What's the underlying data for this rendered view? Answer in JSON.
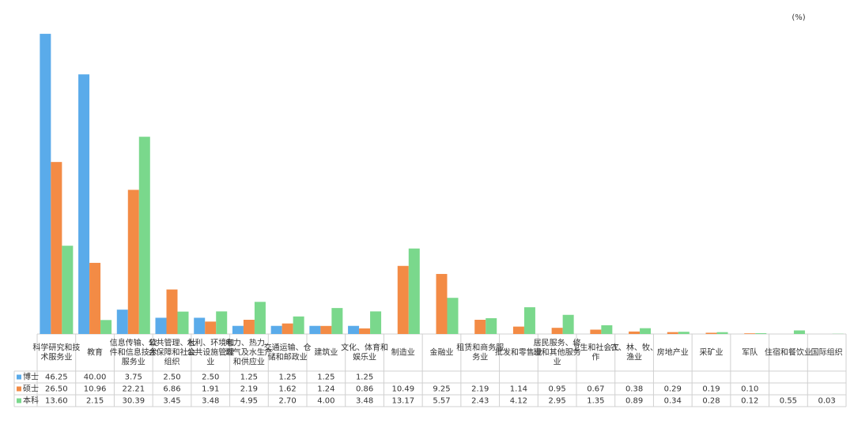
{
  "chart_data": {
    "type": "bar",
    "unit_note": "(%)",
    "categories": [
      "科学研究和技术服务业",
      "教育",
      "信息传输、软件和信息技术服务业",
      "公共管理、社会保障和社会组织",
      "水利、环境和公共设施管理业",
      "电力、热力、燃气及水生产和供应业",
      "交通运输、仓储和邮政业",
      "建筑业",
      "文化、体育和娱乐业",
      "制造业",
      "金融业",
      "租赁和商务服务业",
      "批发和零售业",
      "居民服务、修理和其他服务业",
      "卫生和社会工作",
      "农、林、牧、渔业",
      "房地产业",
      "采矿业",
      "军队",
      "住宿和餐饮业",
      "国际组织"
    ],
    "series": [
      {
        "name": "博士",
        "color": "#5aabea",
        "values": [
          46.25,
          40.0,
          3.75,
          2.5,
          2.5,
          1.25,
          1.25,
          1.25,
          1.25,
          null,
          null,
          null,
          null,
          null,
          null,
          null,
          null,
          null,
          null,
          null,
          null
        ],
        "value_labels": [
          "46.25",
          "40.00",
          "3.75",
          "2.50",
          "2.50",
          "1.25",
          "1.25",
          "1.25",
          "1.25",
          null,
          null,
          null,
          null,
          null,
          null,
          null,
          null,
          null,
          null,
          null,
          null
        ]
      },
      {
        "name": "硕士",
        "color": "#f38b45",
        "values": [
          26.5,
          10.96,
          22.21,
          6.86,
          1.91,
          2.19,
          1.62,
          1.24,
          0.86,
          10.49,
          9.25,
          2.19,
          1.14,
          0.95,
          0.67,
          0.38,
          0.29,
          0.19,
          0.1,
          null,
          null
        ],
        "value_labels": [
          "26.50",
          "10.96",
          "22.21",
          "6.86",
          "1.91",
          "2.19",
          "1.62",
          "1.24",
          "0.86",
          "10.49",
          "9.25",
          "2.19",
          "1.14",
          "0.95",
          "0.67",
          "0.38",
          "0.29",
          "0.19",
          "0.10",
          null,
          null
        ]
      },
      {
        "name": "本科",
        "color": "#7ad88c",
        "values": [
          13.6,
          2.15,
          30.39,
          3.45,
          3.48,
          4.95,
          2.7,
          4.0,
          3.48,
          13.17,
          5.57,
          2.43,
          4.12,
          2.95,
          1.35,
          0.89,
          0.34,
          0.28,
          0.12,
          0.55,
          0.03
        ],
        "value_labels": [
          "13.60",
          "2.15",
          "30.39",
          "3.45",
          "3.48",
          "4.95",
          "2.70",
          "4.00",
          "3.48",
          "13.17",
          "5.57",
          "2.43",
          "4.12",
          "2.95",
          "1.35",
          "0.89",
          "0.34",
          "0.28",
          "0.12",
          "0.55",
          "0.03"
        ]
      }
    ],
    "ylim": [
      0,
      50
    ]
  }
}
